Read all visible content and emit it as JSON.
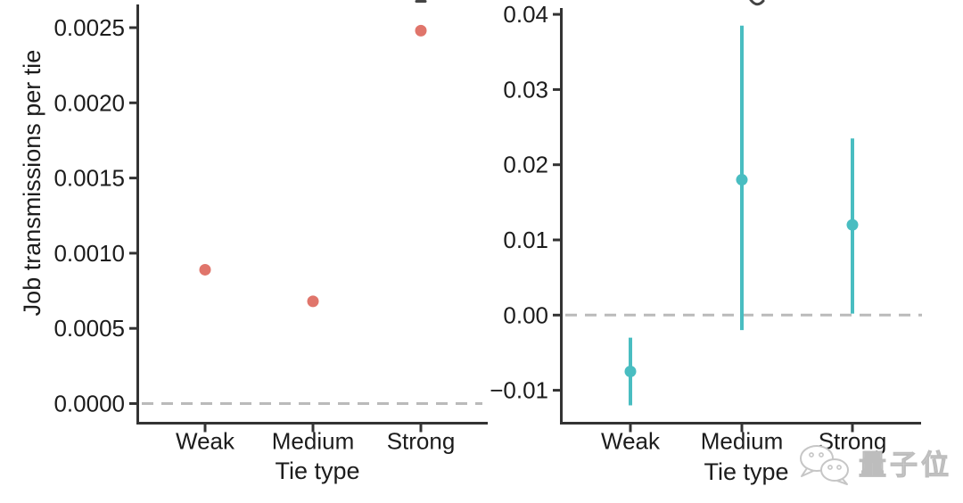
{
  "style": {
    "background": "#ffffff",
    "axis_color": "#333333",
    "text_color": "#1c1c1c",
    "dash_color": "#bababa",
    "left_point_color": "#e0756b",
    "right_point_color": "#49bdc1",
    "watermark_color": "#c6c6c6"
  },
  "watermark": {
    "icon": "wechat-chat-bubbles-icon",
    "text": "量子位"
  },
  "chart_data": [
    {
      "type": "scatter",
      "title": "",
      "xlabel": "Tie type",
      "ylabel": "Job transmissions per tie",
      "categories": [
        "Weak",
        "Medium",
        "Strong"
      ],
      "values": [
        0.00089,
        0.00068,
        0.00248
      ],
      "point_color": "#e0756b",
      "ylim": [
        -0.00013,
        0.00266
      ],
      "yticks": [
        {
          "v": 0.0,
          "label": "0.0000"
        },
        {
          "v": 0.0005,
          "label": "0.0005"
        },
        {
          "v": 0.001,
          "label": "0.0010"
        },
        {
          "v": 0.0015,
          "label": "0.0015"
        },
        {
          "v": 0.002,
          "label": "0.0020"
        },
        {
          "v": 0.0025,
          "label": "0.0025"
        }
      ],
      "zero_line": {
        "value": 0,
        "style": "dashed",
        "color": "#bababa"
      },
      "grid": false,
      "legend": false
    },
    {
      "type": "scatter-errorbar",
      "title": "",
      "xlabel": "Tie type",
      "ylabel": "",
      "categories": [
        "Weak",
        "Medium",
        "Strong"
      ],
      "values": [
        -0.0075,
        0.018,
        0.012
      ],
      "ci_low": [
        -0.012,
        -0.002,
        0.0002
      ],
      "ci_high": [
        -0.003,
        0.0385,
        0.0235
      ],
      "point_color": "#49bdc1",
      "ylim": [
        -0.0144,
        0.0409
      ],
      "yticks": [
        {
          "v": -0.01,
          "label": "−0.01"
        },
        {
          "v": 0.0,
          "label": "0.00"
        },
        {
          "v": 0.01,
          "label": "0.01"
        },
        {
          "v": 0.02,
          "label": "0.02"
        },
        {
          "v": 0.03,
          "label": "0.03"
        },
        {
          "v": 0.04,
          "label": "0.04"
        }
      ],
      "zero_line": {
        "value": 0,
        "style": "dashed",
        "color": "#bababa"
      },
      "grid": false,
      "legend": false
    }
  ]
}
